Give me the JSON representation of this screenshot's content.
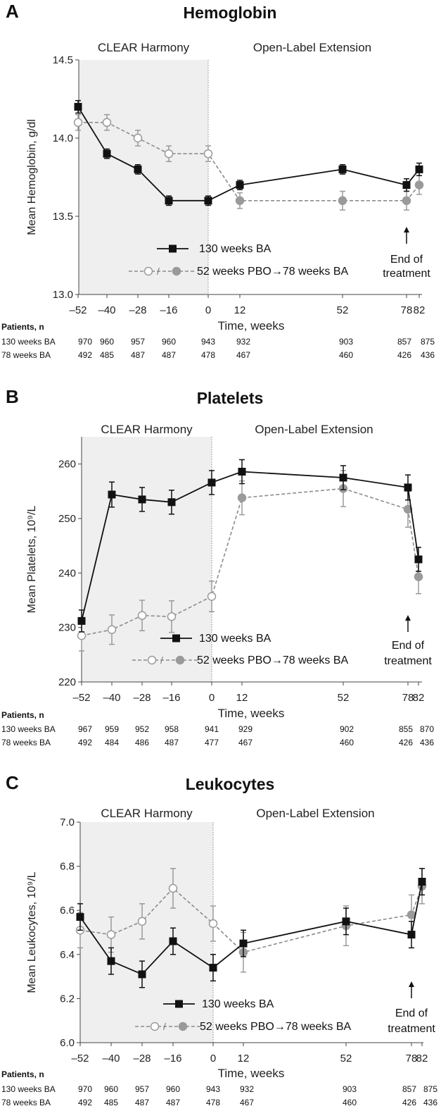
{
  "colors": {
    "series1": "#111111",
    "series2_line": "#8c8c8c",
    "series2_marker": "#9a9a9a",
    "shade": "#efefef"
  },
  "chart_data": [
    {
      "type": "line",
      "panel_letter": "A",
      "title": "Hemoglobin",
      "ylabel": "Mean Hemoglobin, g/dl",
      "xlabel": "Time, weeks",
      "ylim": [
        13.0,
        14.5
      ],
      "yticks": [
        "13.0",
        "13.5",
        "14.0",
        "14.5"
      ],
      "ytick_values": [
        13.0,
        13.5,
        14.0,
        14.5
      ],
      "xticks": [
        "–52",
        "–40",
        "–28",
        "–16",
        "0",
        "12",
        "52",
        "78",
        "82"
      ],
      "xtick_values": [
        -52,
        -40,
        -28,
        -16,
        0,
        12,
        52,
        78,
        82
      ],
      "phase_left": "CLEAR Harmony",
      "phase_right": "Open-Label Extension",
      "legend": {
        "series1": "130 weeks BA",
        "series2_prefix": "/",
        "series2": "52 weeks PBO→78 weeks BA"
      },
      "annotation": [
        "End of",
        "treatment"
      ],
      "series": [
        {
          "name": "130 weeks BA",
          "x": [
            -52,
            -40,
            -28,
            -16,
            0,
            12,
            52,
            78,
            82
          ],
          "values": [
            14.2,
            13.9,
            13.8,
            13.6,
            13.6,
            13.7,
            13.8,
            13.7,
            13.8
          ],
          "err": [
            0.04,
            0.03,
            0.03,
            0.03,
            0.03,
            0.03,
            0.03,
            0.04,
            0.04
          ]
        },
        {
          "name": "52 weeks PBO→78 weeks BA",
          "x": [
            -52,
            -40,
            -28,
            -16,
            0,
            12,
            52,
            78,
            82
          ],
          "values": [
            14.1,
            14.1,
            14.0,
            13.9,
            13.9,
            13.6,
            13.6,
            13.6,
            13.7
          ],
          "err": [
            0.05,
            0.05,
            0.05,
            0.05,
            0.05,
            0.05,
            0.06,
            0.06,
            0.06
          ]
        }
      ],
      "patients": {
        "header": "Patients, n",
        "rows": [
          {
            "label": "130 weeks BA",
            "values": [
              "970",
              "960",
              "957",
              "960",
              "943",
              "932",
              "903",
              "857",
              "875"
            ]
          },
          {
            "label": "78 weeks BA",
            "values": [
              "492",
              "485",
              "487",
              "487",
              "478",
              "467",
              "460",
              "426",
              "436"
            ]
          }
        ]
      }
    },
    {
      "type": "line",
      "panel_letter": "B",
      "title": "Platelets",
      "ylabel": "Mean Platelets, 10⁹/L",
      "xlabel": "Time, weeks",
      "ylim": [
        220,
        265
      ],
      "yticks": [
        "220",
        "230",
        "240",
        "250",
        "260"
      ],
      "ytick_values": [
        220,
        230,
        240,
        250,
        260
      ],
      "xticks": [
        "–52",
        "–40",
        "–28",
        "–16",
        "0",
        "12",
        "52",
        "78",
        "82"
      ],
      "xtick_values": [
        -52,
        -40,
        -28,
        -16,
        0,
        12,
        52,
        78,
        82
      ],
      "phase_left": "CLEAR Harmony",
      "phase_right": "Open-Label Extension",
      "legend": {
        "series1": "130 weeks BA",
        "series2_prefix": "/",
        "series2": "52 weeks PBO→78 weeks BA"
      },
      "annotation": [
        "End of",
        "treatment"
      ],
      "series": [
        {
          "name": "130 weeks BA",
          "x": [
            -52,
            -40,
            -28,
            -16,
            0,
            12,
            52,
            78,
            82
          ],
          "values": [
            231.2,
            254.4,
            253.5,
            253.0,
            256.6,
            258.6,
            257.5,
            255.7,
            242.5
          ],
          "err": [
            2.0,
            2.3,
            2.2,
            2.2,
            2.2,
            2.2,
            2.2,
            2.3,
            2.2
          ]
        },
        {
          "name": "52 weeks PBO→78 weeks BA",
          "x": [
            -52,
            -40,
            -28,
            -16,
            0,
            12,
            52,
            78,
            82
          ],
          "values": [
            228.5,
            229.6,
            232.2,
            232.0,
            235.7,
            253.8,
            255.5,
            251.7,
            239.3
          ],
          "err": [
            2.8,
            2.7,
            2.8,
            2.9,
            2.8,
            3.1,
            3.3,
            3.3,
            3.1
          ]
        }
      ],
      "patients": {
        "header": "Patients, n",
        "rows": [
          {
            "label": "130 weeks BA",
            "values": [
              "967",
              "959",
              "952",
              "958",
              "941",
              "929",
              "902",
              "855",
              "870"
            ]
          },
          {
            "label": "78 weeks BA",
            "values": [
              "492",
              "484",
              "486",
              "487",
              "477",
              "467",
              "460",
              "426",
              "436"
            ]
          }
        ]
      }
    },
    {
      "type": "line",
      "panel_letter": "C",
      "title": "Leukocytes",
      "ylabel": "Mean Leukocytes, 10⁹/L",
      "xlabel": "Time, weeks",
      "ylim": [
        6.0,
        7.0
      ],
      "yticks": [
        "6.0",
        "6.2",
        "6.4",
        "6.6",
        "6.8",
        "7.0"
      ],
      "ytick_values": [
        6.0,
        6.2,
        6.4,
        6.6,
        6.8,
        7.0
      ],
      "xticks": [
        "–52",
        "–40",
        "–28",
        "–16",
        "0",
        "12",
        "52",
        "78",
        "82"
      ],
      "xtick_values": [
        -52,
        -40,
        -28,
        -16,
        0,
        12,
        52,
        78,
        82
      ],
      "phase_left": "CLEAR Harmony",
      "phase_right": "Open-Label Extension",
      "legend": {
        "series1": "130 weeks BA",
        "series2_prefix": "/",
        "series2": "52 weeks PBO→78 weeks BA"
      },
      "annotation": [
        "End of",
        "treatment"
      ],
      "series": [
        {
          "name": "130 weeks BA",
          "x": [
            -52,
            -40,
            -28,
            -16,
            0,
            12,
            52,
            78,
            82
          ],
          "values": [
            6.57,
            6.37,
            6.31,
            6.46,
            6.34,
            6.45,
            6.55,
            6.49,
            6.73
          ],
          "err": [
            0.06,
            0.06,
            0.06,
            0.06,
            0.06,
            0.06,
            0.06,
            0.06,
            0.06
          ]
        },
        {
          "name": "52 weeks PBO→78 weeks BA",
          "x": [
            -52,
            -40,
            -28,
            -16,
            0,
            12,
            52,
            78,
            82
          ],
          "values": [
            6.51,
            6.49,
            6.55,
            6.7,
            6.54,
            6.41,
            6.53,
            6.58,
            6.71
          ],
          "err": [
            0.08,
            0.08,
            0.08,
            0.09,
            0.08,
            0.09,
            0.09,
            0.09,
            0.08
          ]
        }
      ],
      "patients": {
        "header": "Patients, n",
        "rows": [
          {
            "label": "130 weeks BA",
            "values": [
              "970",
              "960",
              "957",
              "960",
              "943",
              "932",
              "903",
              "857",
              "875"
            ]
          },
          {
            "label": "78 weeks BA",
            "values": [
              "492",
              "485",
              "487",
              "487",
              "478",
              "467",
              "460",
              "426",
              "436"
            ]
          }
        ]
      }
    }
  ]
}
